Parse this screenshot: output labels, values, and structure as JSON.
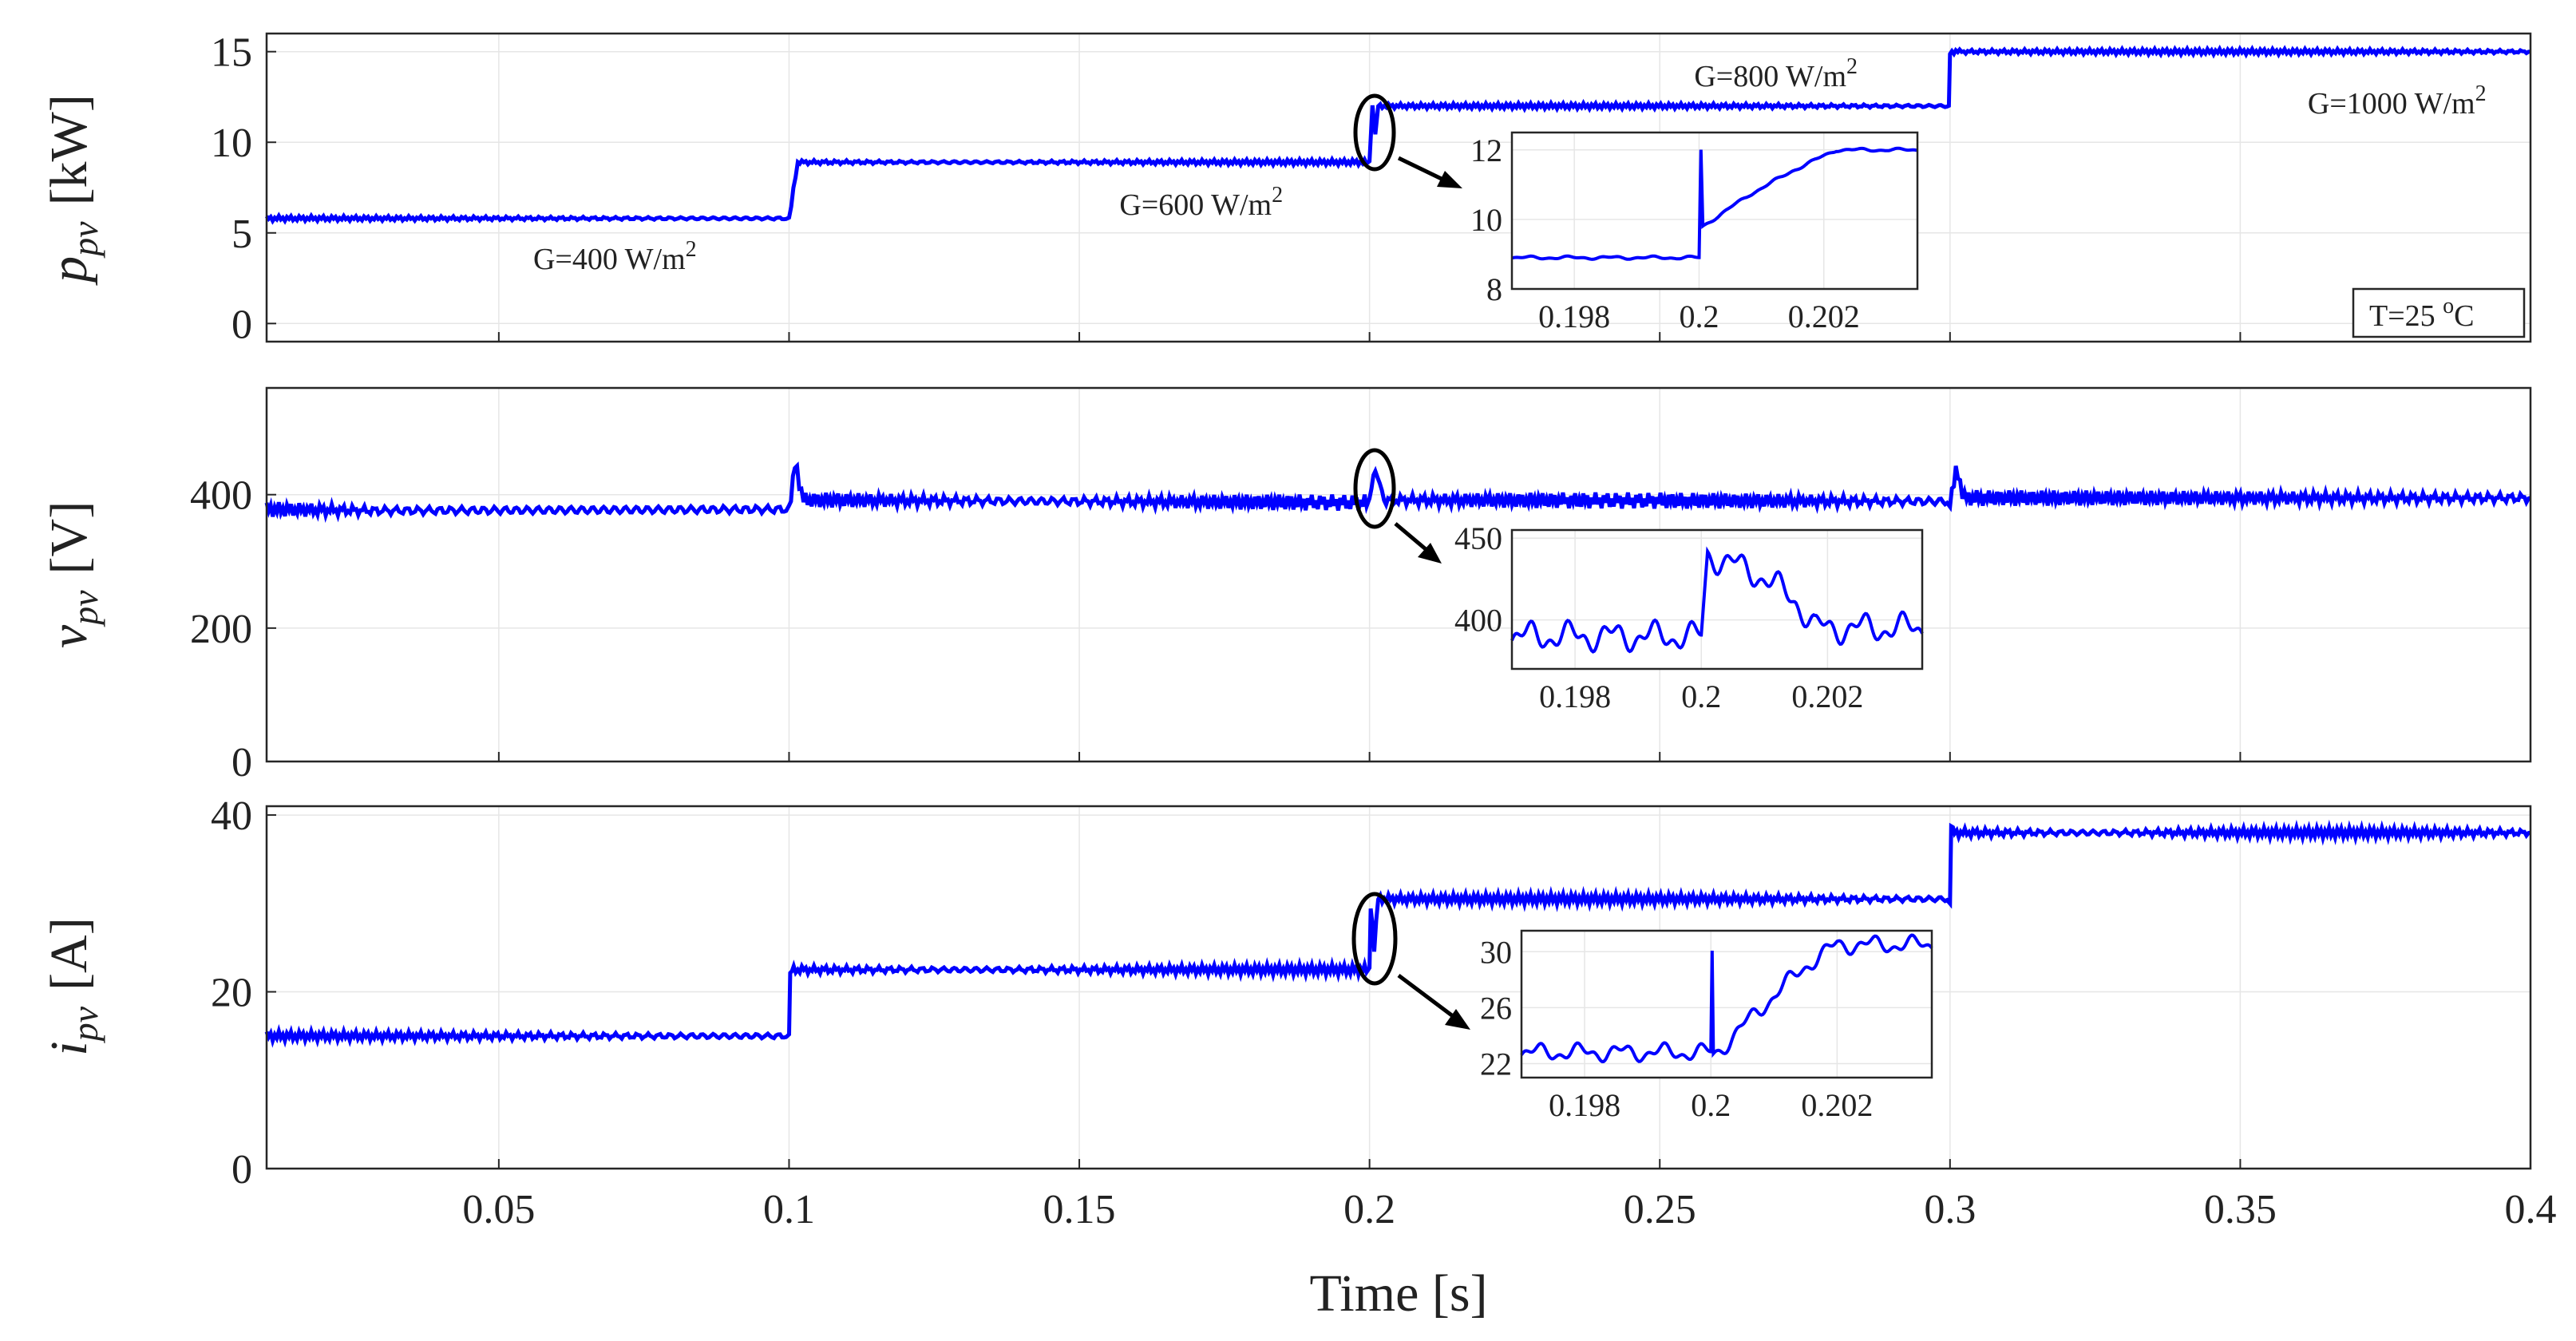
{
  "chart_data": [
    {
      "type": "line",
      "series_name": "p_pv",
      "ylabel_main": "p",
      "ylabel_sub": "pv",
      "ylabel_unit": "[kW]",
      "xlim": [
        0.01,
        0.4
      ],
      "ylim": [
        -1,
        16
      ],
      "yticks": [
        0,
        5,
        10,
        15
      ],
      "xticks": [
        0.05,
        0.1,
        0.15,
        0.2,
        0.25,
        0.3,
        0.35,
        0.4
      ],
      "x": [
        0.01,
        0.0995,
        0.1,
        0.1015,
        0.1995,
        0.2,
        0.2005,
        0.201,
        0.2015,
        0.2995,
        0.2998,
        0.3,
        0.302,
        0.4
      ],
      "y": [
        5.8,
        5.8,
        5.8,
        8.9,
        8.9,
        8.9,
        12.0,
        10.5,
        12.0,
        12.0,
        12.0,
        15.0,
        15.0,
        15.0
      ],
      "ripple": 0.15,
      "annotations": [
        {
          "base": "G=400 W/m",
          "sup": "2",
          "x": 0.07,
          "y": 3.0
        },
        {
          "base": "G=600 W/m",
          "sup": "2",
          "x": 0.171,
          "y": 6.0
        },
        {
          "base": "G=800 W/m",
          "sup": "2",
          "x": 0.27,
          "y": 13.1
        },
        {
          "base": "G=1000 W/m",
          "sup": "2",
          "x": 0.377,
          "y": 11.6
        }
      ],
      "temperature_label": {
        "base": "T=25 ",
        "sup": "o",
        "tail": "C"
      },
      "inset": {
        "xlim": [
          0.197,
          0.2035
        ],
        "ylim": [
          8,
          12.5
        ],
        "yticks": [
          8,
          10,
          12
        ],
        "xticks": [
          0.198,
          0.2,
          0.202
        ],
        "x": [
          0.197,
          0.19999,
          0.2,
          0.20003,
          0.20006,
          0.2008,
          0.2015,
          0.2022,
          0.2035
        ],
        "y": [
          8.9,
          8.9,
          8.9,
          12.0,
          9.8,
          10.7,
          11.4,
          12.0,
          12.0
        ],
        "ripple": 0.05
      }
    },
    {
      "type": "line",
      "series_name": "v_pv",
      "ylabel_main": "v",
      "ylabel_sub": "pv",
      "ylabel_unit": "[V]",
      "xlim": [
        0.01,
        0.4
      ],
      "ylim": [
        0,
        560
      ],
      "yticks": [
        0,
        200,
        400
      ],
      "xticks": [
        0.05,
        0.1,
        0.15,
        0.2,
        0.25,
        0.3,
        0.35,
        0.4
      ],
      "x": [
        0.01,
        0.03,
        0.0995,
        0.1,
        0.101,
        0.1025,
        0.1995,
        0.2,
        0.201,
        0.2025,
        0.2995,
        0.3,
        0.301,
        0.3025,
        0.4
      ],
      "y": [
        378,
        376,
        378,
        380,
        445,
        392,
        388,
        390,
        440,
        392,
        390,
        392,
        437,
        395,
        395
      ],
      "ripple": 12,
      "inset": {
        "xlim": [
          0.197,
          0.2035
        ],
        "ylim": [
          370,
          455
        ],
        "yticks": [
          400,
          450
        ],
        "xticks": [
          0.198,
          0.2,
          0.202
        ],
        "x": [
          0.197,
          0.19999,
          0.2,
          0.2001,
          0.2009,
          0.2015,
          0.2018,
          0.2035
        ],
        "y": [
          390,
          390,
          390,
          440,
          428,
          412,
          395,
          395
        ],
        "ripple": 10
      }
    },
    {
      "type": "line",
      "series_name": "i_pv",
      "ylabel_main": "i",
      "ylabel_sub": "pv",
      "ylabel_unit": "[A]",
      "xlim": [
        0.01,
        0.4
      ],
      "ylim": [
        0,
        41
      ],
      "yticks": [
        0,
        20,
        40
      ],
      "xticks": [
        0.05,
        0.1,
        0.15,
        0.2,
        0.25,
        0.3,
        0.35,
        0.4
      ],
      "x": [
        0.01,
        0.0995,
        0.1,
        0.1002,
        0.1008,
        0.1995,
        0.2,
        0.2002,
        0.2008,
        0.2015,
        0.2995,
        0.3,
        0.3002,
        0.3008,
        0.4
      ],
      "y": [
        15,
        15,
        15,
        22,
        22.5,
        22.5,
        22.5,
        30,
        25,
        30.5,
        30.5,
        30.5,
        38.5,
        38,
        38
      ],
      "ripple": 0.6,
      "xlabel": "Time [s]",
      "inset": {
        "xlim": [
          0.197,
          0.2035
        ],
        "ylim": [
          21,
          31.5
        ],
        "yticks": [
          22,
          26,
          30
        ],
        "xticks": [
          0.198,
          0.2,
          0.202
        ],
        "x": [
          0.197,
          0.2,
          0.20002,
          0.20004,
          0.2001,
          0.2008,
          0.2015,
          0.202,
          0.2035
        ],
        "y": [
          22.8,
          22.8,
          30,
          22.6,
          22.8,
          26,
          29,
          30.5,
          30.5
        ],
        "ripple": 0.7
      }
    }
  ],
  "colors": {
    "line": "#0000ff",
    "frame": "#262626",
    "grid": "#e6e6e6",
    "text": "#222222"
  }
}
